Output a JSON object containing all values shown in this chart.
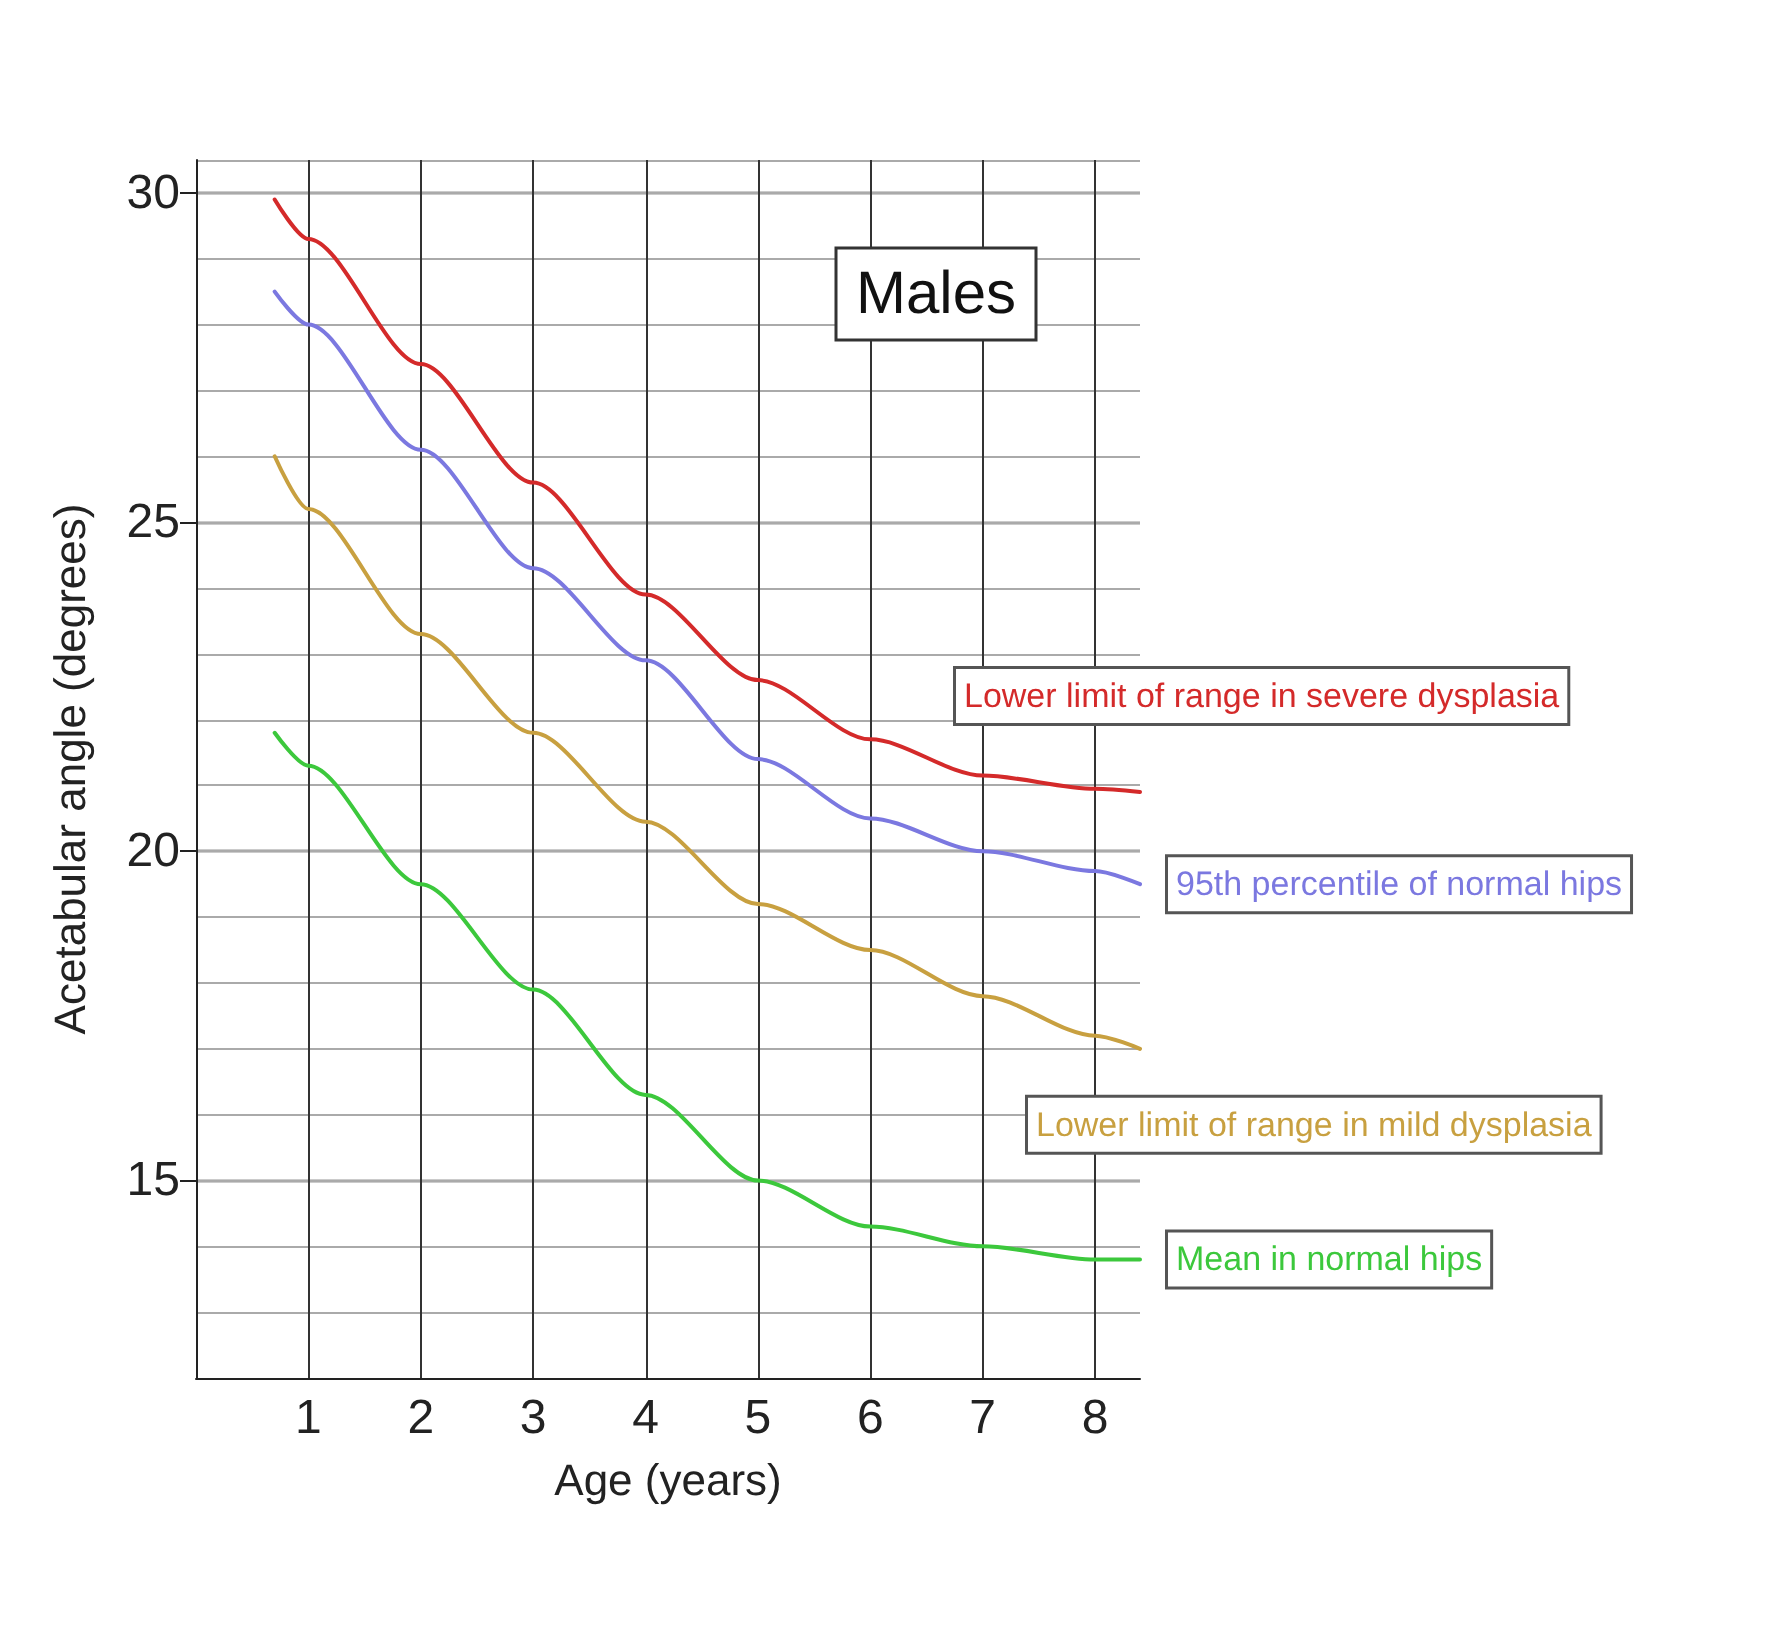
{
  "chart_data": {
    "type": "line",
    "title": "Males",
    "xlabel": "Age (years)",
    "ylabel": "Acetabular angle (degrees)",
    "xlim": [
      0,
      8.4
    ],
    "xticks": [
      1,
      2,
      3,
      4,
      5,
      6,
      7,
      8
    ],
    "ylim": [
      12,
      30.5
    ],
    "yticks": [
      15,
      20,
      25,
      30
    ],
    "grid": true,
    "legend": false,
    "marker": "none",
    "line_style": "solid",
    "x": [
      0.7,
      1,
      2,
      3,
      4,
      5,
      6,
      7,
      8,
      8.4
    ],
    "series": [
      {
        "name": "Lower limit of range in severe dysplasia",
        "color": "#d42a2a",
        "values": [
          29.9,
          29.3,
          27.4,
          25.6,
          23.9,
          22.6,
          21.7,
          21.15,
          20.95,
          20.9
        ]
      },
      {
        "name": "95th percentile of normal hips",
        "color": "#7b78e0",
        "values": [
          28.5,
          28.0,
          26.1,
          24.3,
          22.9,
          21.4,
          20.5,
          20.0,
          19.7,
          19.5
        ]
      },
      {
        "name": "Lower limit of range in mild dysplasia",
        "color": "#c8a040",
        "values": [
          26.0,
          25.2,
          23.3,
          21.8,
          20.45,
          19.2,
          18.5,
          17.8,
          17.2,
          17.0
        ]
      },
      {
        "name": "Mean in normal hips",
        "color": "#3cc83c",
        "values": [
          21.8,
          21.3,
          19.5,
          17.9,
          16.3,
          15.0,
          14.3,
          14.0,
          13.8,
          13.8
        ]
      }
    ]
  }
}
